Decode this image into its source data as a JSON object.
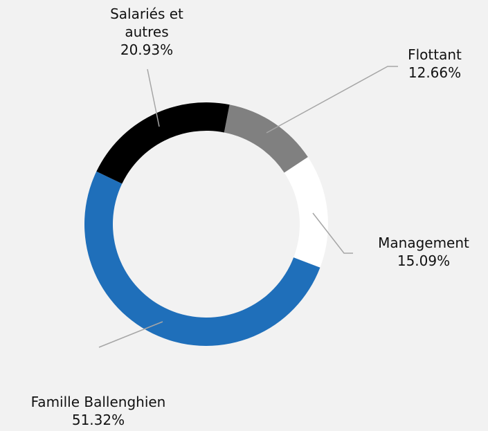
{
  "chart_data": {
    "type": "donut",
    "categories": [
      "Flottant",
      "Management",
      "Famille Ballenghien",
      "Salariés et autres"
    ],
    "values": [
      12.66,
      15.09,
      51.32,
      20.93
    ],
    "value_labels": [
      "12.66%",
      "15.09%",
      "51.32%",
      "20.93%"
    ],
    "colors": [
      "#808080",
      "#ffffff",
      "#1f6fba",
      "#000000"
    ]
  }
}
